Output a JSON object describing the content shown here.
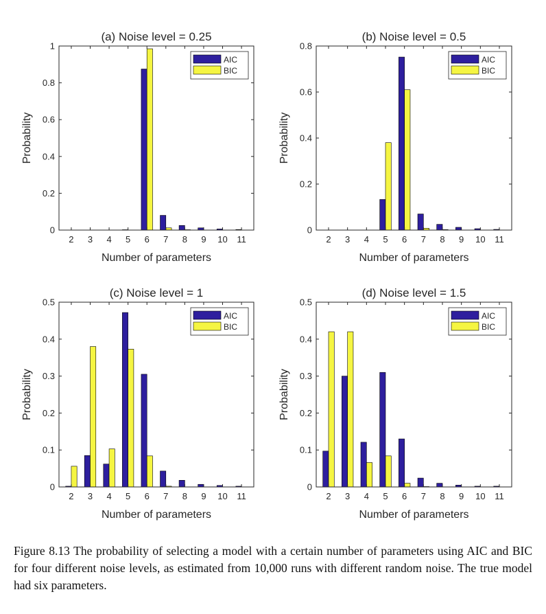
{
  "colors": {
    "AIC": "#2E1F9E",
    "BIC": "#F5F542"
  },
  "caption": "Figure 8.13 The probability of selecting a model with a certain number of parameters using AIC and BIC for four different noise levels, as estimated from 10,000 runs with different random noise. The true model had six parameters.",
  "chart_data": [
    {
      "type": "bar",
      "title": "(a)  Noise level = 0.25",
      "xlabel": "Number of parameters",
      "ylabel": "Probability",
      "categories": [
        "2",
        "3",
        "4",
        "5",
        "6",
        "7",
        "8",
        "9",
        "10",
        "11"
      ],
      "ylim": [
        0,
        1
      ],
      "yticks": [
        "0",
        "0.2",
        "0.4",
        "0.6",
        "0.8",
        "1"
      ],
      "ytick_values": [
        0,
        0.2,
        0.4,
        0.6,
        0.8,
        1
      ],
      "legend": "top-right",
      "series": [
        {
          "name": "AIC",
          "values": [
            0,
            0,
            0,
            0.002,
            0.875,
            0.08,
            0.025,
            0.012,
            0.006,
            0.003
          ]
        },
        {
          "name": "BIC",
          "values": [
            0,
            0,
            0,
            0,
            0.985,
            0.012,
            0.002,
            0,
            0,
            0
          ]
        }
      ]
    },
    {
      "type": "bar",
      "title": "(b)  Noise level = 0.5",
      "xlabel": "Number of parameters",
      "ylabel": "Probability",
      "categories": [
        "2",
        "3",
        "4",
        "5",
        "6",
        "7",
        "8",
        "9",
        "10",
        "11"
      ],
      "ylim": [
        0,
        0.8
      ],
      "yticks": [
        "0",
        "0.2",
        "0.4",
        "0.6",
        "0.8"
      ],
      "ytick_values": [
        0,
        0.2,
        0.4,
        0.6,
        0.8
      ],
      "legend": "top-right",
      "series": [
        {
          "name": "AIC",
          "values": [
            0,
            0,
            0,
            0.133,
            0.752,
            0.07,
            0.025,
            0.012,
            0.006,
            0.003
          ]
        },
        {
          "name": "BIC",
          "values": [
            0,
            0,
            0,
            0.38,
            0.61,
            0.008,
            0.002,
            0,
            0,
            0
          ]
        }
      ]
    },
    {
      "type": "bar",
      "title": "(c)  Noise level = 1",
      "xlabel": "Number of parameters",
      "ylabel": "Probability",
      "categories": [
        "2",
        "3",
        "4",
        "5",
        "6",
        "7",
        "8",
        "9",
        "10",
        "11"
      ],
      "ylim": [
        0,
        0.5
      ],
      "yticks": [
        "0",
        "0.1",
        "0.2",
        "0.3",
        "0.4",
        "0.5"
      ],
      "ytick_values": [
        0,
        0.1,
        0.2,
        0.3,
        0.4,
        0.5
      ],
      "legend": "top-right",
      "series": [
        {
          "name": "AIC",
          "values": [
            0.002,
            0.085,
            0.062,
            0.472,
            0.305,
            0.043,
            0.018,
            0.007,
            0.004,
            0.002
          ]
        },
        {
          "name": "BIC",
          "values": [
            0.056,
            0.38,
            0.103,
            0.373,
            0.084,
            0.002,
            0,
            0,
            0,
            0
          ]
        }
      ]
    },
    {
      "type": "bar",
      "title": "(d)  Noise level = 1.5",
      "xlabel": "Number of parameters",
      "ylabel": "Probability",
      "categories": [
        "2",
        "3",
        "4",
        "5",
        "6",
        "7",
        "8",
        "9",
        "10",
        "11"
      ],
      "ylim": [
        0,
        0.5
      ],
      "yticks": [
        "0",
        "0.1",
        "0.2",
        "0.3",
        "0.4",
        "0.5"
      ],
      "ytick_values": [
        0,
        0.1,
        0.2,
        0.3,
        0.4,
        0.5
      ],
      "legend": "top-right",
      "series": [
        {
          "name": "AIC",
          "values": [
            0.097,
            0.3,
            0.121,
            0.31,
            0.13,
            0.024,
            0.01,
            0.005,
            0.002,
            0.002
          ]
        },
        {
          "name": "BIC",
          "values": [
            0.42,
            0.42,
            0.066,
            0.084,
            0.01,
            0.001,
            0,
            0,
            0,
            0
          ]
        }
      ]
    }
  ]
}
